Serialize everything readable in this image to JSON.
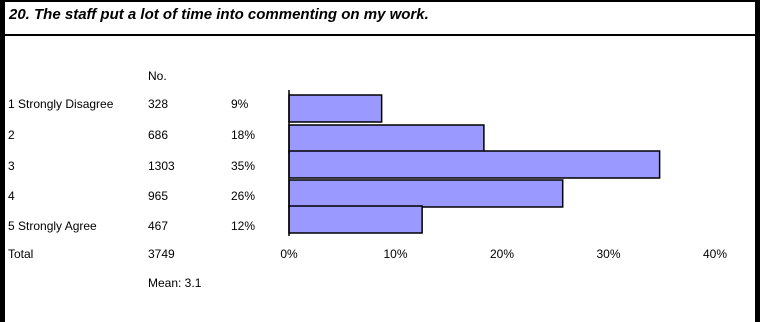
{
  "title": "20. The staff put a lot of time into commenting on my work.",
  "table": {
    "no_header": "No.",
    "rows": [
      {
        "label": "1 Strongly Disagree",
        "count": "328",
        "percent": "9%"
      },
      {
        "label": "2",
        "count": "686",
        "percent": "18%"
      },
      {
        "label": "3",
        "count": "1303",
        "percent": "35%"
      },
      {
        "label": "4",
        "count": "965",
        "percent": "26%"
      },
      {
        "label": "5 Strongly Agree",
        "count": "467",
        "percent": "12%"
      }
    ],
    "total_label": "Total",
    "total_count": "3749",
    "mean_text": "Mean: 3.1"
  },
  "chart_data": {
    "type": "bar",
    "orientation": "horizontal",
    "categories": [
      "1 Strongly Disagree",
      "2",
      "3",
      "4",
      "5 Strongly Agree"
    ],
    "values": [
      8.7,
      18.3,
      34.8,
      25.7,
      12.5
    ],
    "xlim": [
      0,
      40
    ],
    "xticks": [
      "0%",
      "10%",
      "20%",
      "30%",
      "40%"
    ],
    "bar_color": "#9999ff",
    "grid": false,
    "legend": "none"
  }
}
